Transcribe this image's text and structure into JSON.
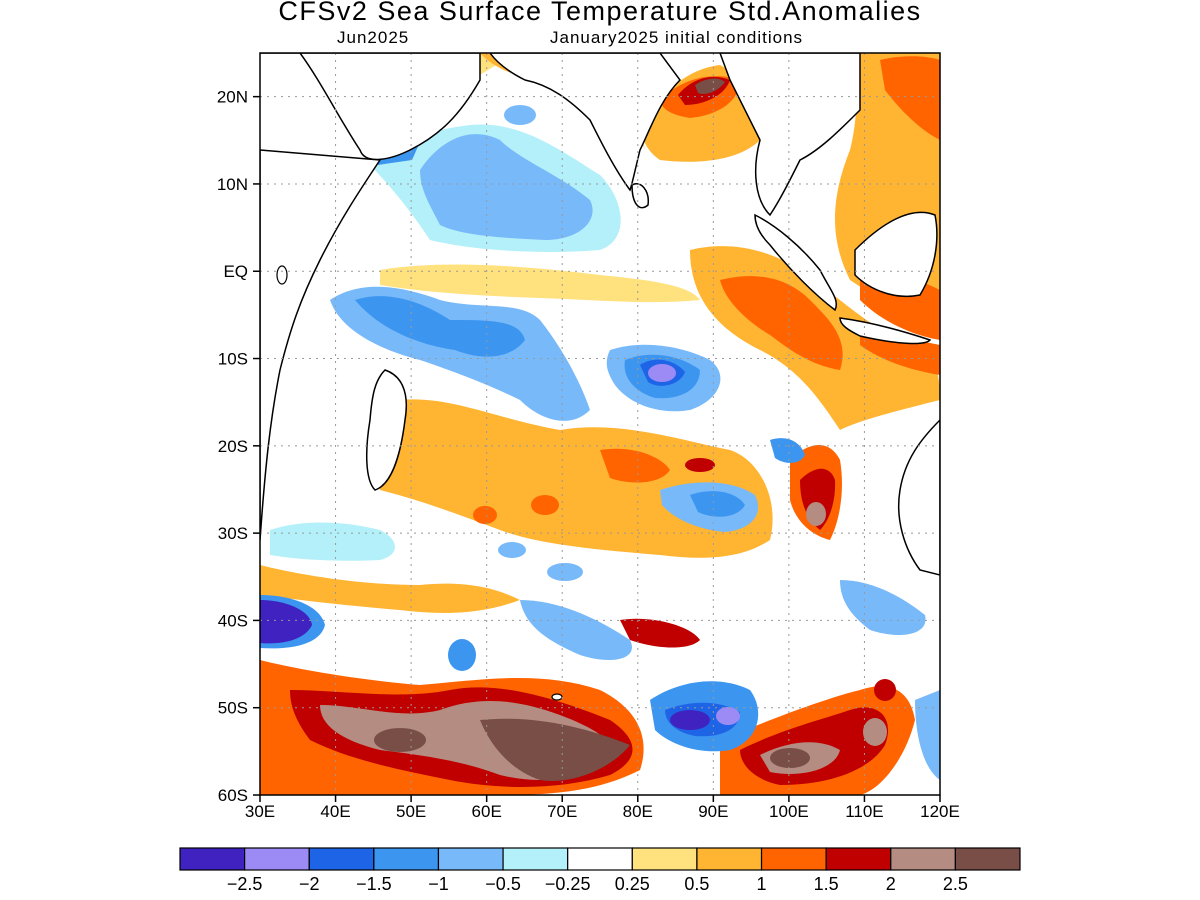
{
  "title": "CFSv2 Sea Surface Temperature Std.Anomalies",
  "subtitle_left": "Jun2025",
  "subtitle_right": "January2025 initial conditions",
  "map": {
    "lon_range": [
      30,
      120
    ],
    "lat_range": [
      -60,
      25
    ],
    "x_ticks": [
      {
        "value": 30,
        "label": "30E"
      },
      {
        "value": 40,
        "label": "40E"
      },
      {
        "value": 50,
        "label": "50E"
      },
      {
        "value": 60,
        "label": "60E"
      },
      {
        "value": 70,
        "label": "70E"
      },
      {
        "value": 80,
        "label": "80E"
      },
      {
        "value": 90,
        "label": "90E"
      },
      {
        "value": 100,
        "label": "100E"
      },
      {
        "value": 110,
        "label": "110E"
      },
      {
        "value": 120,
        "label": "120E"
      }
    ],
    "y_ticks": [
      {
        "value": 20,
        "label": "20N"
      },
      {
        "value": 10,
        "label": "10N"
      },
      {
        "value": 0,
        "label": "EQ"
      },
      {
        "value": -10,
        "label": "10S"
      },
      {
        "value": -20,
        "label": "20S"
      },
      {
        "value": -30,
        "label": "30S"
      },
      {
        "value": -40,
        "label": "40S"
      },
      {
        "value": -50,
        "label": "50S"
      },
      {
        "value": -60,
        "label": "60S"
      }
    ],
    "grid": "dotted"
  },
  "colorbar": {
    "colors": [
      "#3f22c0",
      "#9d8bf5",
      "#1e64e6",
      "#3c96f0",
      "#78b9fa",
      "#b4f0fa",
      "#ffffff",
      "#ffe17d",
      "#ffb432",
      "#ff6400",
      "#c00000",
      "#b48c82",
      "#784e46"
    ],
    "labels": [
      "-2.5",
      "-2",
      "-1.5",
      "-1",
      "-0.5",
      "-0.25",
      "0.25",
      "0.5",
      "1",
      "1.5",
      "2",
      "2.5"
    ]
  },
  "land_color": "#ffffff"
}
